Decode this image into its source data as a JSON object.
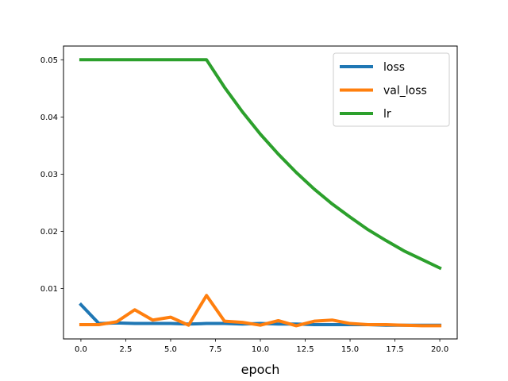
{
  "chart_data": {
    "type": "line",
    "title": "",
    "xlabel": "epoch",
    "ylabel": "",
    "xlim": [
      -0.97,
      20.97
    ],
    "ylim": [
      0.0012,
      0.0524
    ],
    "grid": false,
    "legend_position": "top-right",
    "x_ticks": [
      0,
      2.5,
      5,
      7.5,
      10,
      12.5,
      15,
      17.5,
      20
    ],
    "x_tick_labels": [
      "0.0",
      "2.5",
      "5.0",
      "7.5",
      "10.0",
      "12.5",
      "15.0",
      "17.5",
      "20.0"
    ],
    "y_ticks": [
      0.01,
      0.02,
      0.03,
      0.04,
      0.05
    ],
    "y_tick_labels": [
      "0.01",
      "0.02",
      "0.03",
      "0.04",
      "0.05"
    ],
    "x": [
      0,
      1,
      2,
      3,
      4,
      5,
      6,
      7,
      8,
      9,
      10,
      11,
      12,
      13,
      14,
      15,
      16,
      17,
      18,
      19,
      20
    ],
    "series": [
      {
        "name": "loss",
        "color": "#1f77b4",
        "values": [
          0.0072,
          0.0039,
          0.004,
          0.0039,
          0.0039,
          0.0039,
          0.0038,
          0.0039,
          0.0039,
          0.0038,
          0.0039,
          0.0038,
          0.0038,
          0.0037,
          0.0037,
          0.0037,
          0.0037,
          0.0036,
          0.0036,
          0.0036,
          0.0036
        ]
      },
      {
        "name": "val_loss",
        "color": "#ff7f0e",
        "values": [
          0.0037,
          0.0037,
          0.0042,
          0.0063,
          0.0045,
          0.005,
          0.0036,
          0.0088,
          0.0043,
          0.0041,
          0.0036,
          0.0044,
          0.0035,
          0.0043,
          0.0045,
          0.0039,
          0.0037,
          0.0037,
          0.0036,
          0.0035,
          0.0035
        ]
      },
      {
        "name": "lr",
        "color": "#2ca02c",
        "values": [
          0.05,
          0.05,
          0.05,
          0.05,
          0.05,
          0.05,
          0.05,
          0.05,
          0.0452,
          0.0409,
          0.037,
          0.0335,
          0.0303,
          0.0274,
          0.0248,
          0.0225,
          0.0203,
          0.0184,
          0.0166,
          0.0151,
          0.0136
        ]
      }
    ]
  }
}
